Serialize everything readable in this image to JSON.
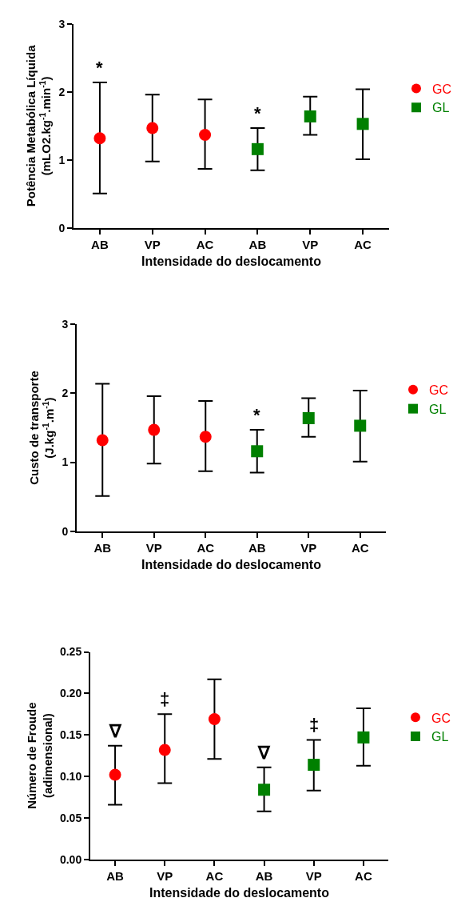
{
  "chart_data": [
    {
      "type": "scatter",
      "categories": [
        "AB",
        "VP",
        "AC",
        "AB",
        "VP",
        "AC"
      ],
      "xlabel": "Intensidade do deslocamento",
      "ylabel": "Potência Metabólica Líquida\n(mLO2.kg$^{-1}$.min$^{-1}$)",
      "ylim": [
        0,
        3
      ],
      "yticks": [
        0,
        1,
        2,
        3
      ],
      "legend": "right",
      "series": [
        {
          "name": "GC",
          "color": "#ff0000",
          "marker": "circle",
          "values": [
            1.32,
            1.47,
            1.37,
            null,
            null,
            null
          ],
          "errors": [
            [
              0.51,
              2.14
            ],
            [
              0.98,
              1.96
            ],
            [
              0.87,
              1.89
            ],
            null,
            null,
            null
          ]
        },
        {
          "name": "GL",
          "color": "#008000",
          "marker": "square",
          "values": [
            null,
            null,
            null,
            1.16,
            1.64,
            1.53
          ],
          "errors": [
            null,
            null,
            null,
            [
              0.85,
              1.47
            ],
            [
              1.37,
              1.93
            ],
            [
              1.01,
              2.04
            ]
          ]
        }
      ],
      "annotations": [
        "*",
        "*"
      ]
    },
    {
      "type": "scatter",
      "categories": [
        "AB",
        "VP",
        "AC",
        "AB",
        "VP",
        "AC"
      ],
      "xlabel": "Intensidade do deslocamento",
      "ylabel": "Custo de transporte\n(J.kg$^{-1}$.m$^{-1}$)",
      "ylim": [
        0,
        3
      ],
      "yticks": [
        0,
        1,
        2,
        3
      ],
      "legend": "right",
      "series": [
        {
          "name": "GC",
          "color": "#ff0000",
          "marker": "circle",
          "values": [
            1.32,
            1.47,
            1.37,
            null,
            null,
            null
          ],
          "errors": [
            [
              0.51,
              2.14
            ],
            [
              0.98,
              1.96
            ],
            [
              0.87,
              1.89
            ],
            null,
            null,
            null
          ]
        },
        {
          "name": "GL",
          "color": "#008000",
          "marker": "square",
          "values": [
            null,
            null,
            null,
            1.16,
            1.64,
            1.53
          ],
          "errors": [
            null,
            null,
            null,
            [
              0.85,
              1.47
            ],
            [
              1.37,
              1.93
            ],
            [
              1.01,
              2.04
            ]
          ]
        }
      ],
      "annotations": [
        "*"
      ]
    },
    {
      "type": "scatter",
      "categories": [
        "AB",
        "VP",
        "AC",
        "AB",
        "VP",
        "AC"
      ],
      "xlabel": "Intensidade do deslocamento",
      "ylabel": "Número de Froude\n(adimensional)",
      "ylim": [
        0,
        0.25
      ],
      "yticks": [
        {
          "value": 0,
          "label": "0.00"
        },
        {
          "value": 0.05,
          "label": "0.05"
        },
        {
          "value": 0.1,
          "label": "0.10"
        },
        {
          "value": 0.15,
          "label": "0.15"
        },
        {
          "value": 0.2,
          "label": "0.20"
        },
        {
          "value": 0.25,
          "label": "0.25"
        }
      ],
      "legend": "right",
      "series": [
        {
          "name": "GC",
          "color": "#ff0000",
          "marker": "circle",
          "values": [
            0.102,
            0.132,
            0.169,
            null,
            null,
            null
          ],
          "errors": [
            [
              0.066,
              0.137
            ],
            [
              0.092,
              0.175
            ],
            [
              0.121,
              0.217
            ],
            null,
            null,
            null
          ]
        },
        {
          "name": "GL",
          "color": "#008000",
          "marker": "square",
          "values": [
            null,
            null,
            null,
            0.084,
            0.114,
            0.147
          ],
          "errors": [
            null,
            null,
            null,
            [
              0.058,
              0.111
            ],
            [
              0.083,
              0.144
            ],
            [
              0.113,
              0.182
            ]
          ]
        }
      ],
      "annotations": [
        "∇",
        "‡",
        "∇",
        "‡"
      ]
    }
  ]
}
